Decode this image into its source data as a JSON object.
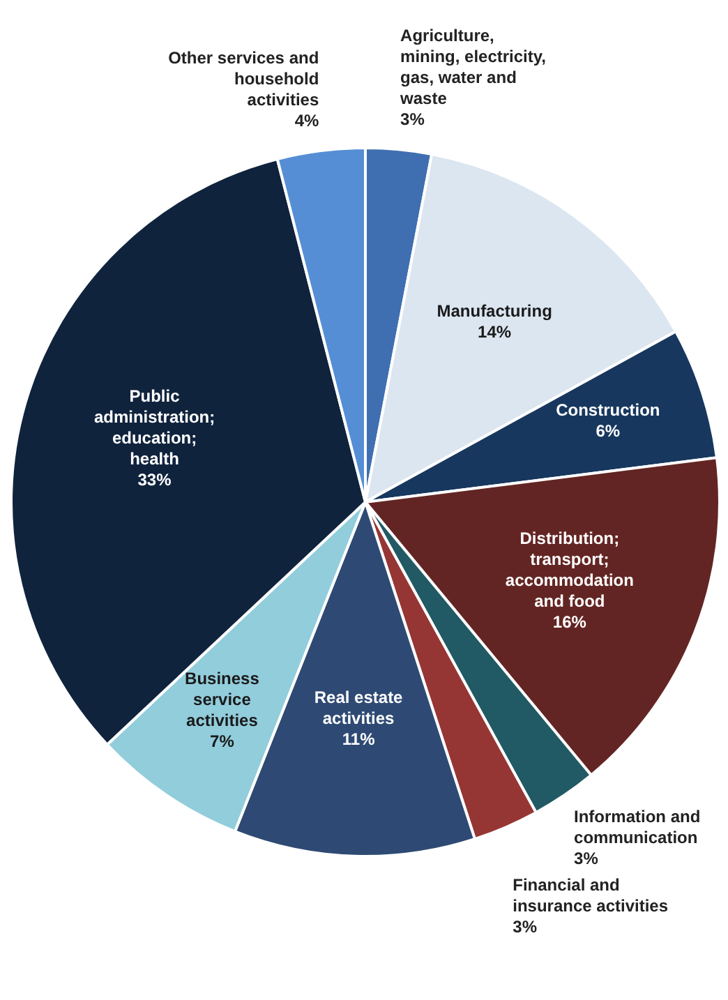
{
  "chart_data": {
    "type": "pie",
    "categories": [
      "Agriculture, mining, electricity, gas, water and waste",
      "Manufacturing",
      "Construction",
      "Distribution; transport; accommodation and food",
      "Information and communication",
      "Financial and insurance activities",
      "Real estate activities",
      "Business service activities",
      "Public administration; education; health",
      "Other services and household activities"
    ],
    "values": [
      3,
      14,
      6,
      16,
      3,
      3,
      11,
      7,
      33,
      4
    ],
    "value_labels": [
      "3%",
      "14%",
      "6%",
      "16%",
      "3%",
      "3%",
      "11%",
      "7%",
      "33%",
      "4%"
    ],
    "colors": [
      "#3f6fb0",
      "#dce6f1",
      "#17375e",
      "#632523",
      "#215a64",
      "#963634",
      "#2e4a74",
      "#92cddc",
      "#10233d",
      "#558ed5"
    ],
    "legend": false
  }
}
